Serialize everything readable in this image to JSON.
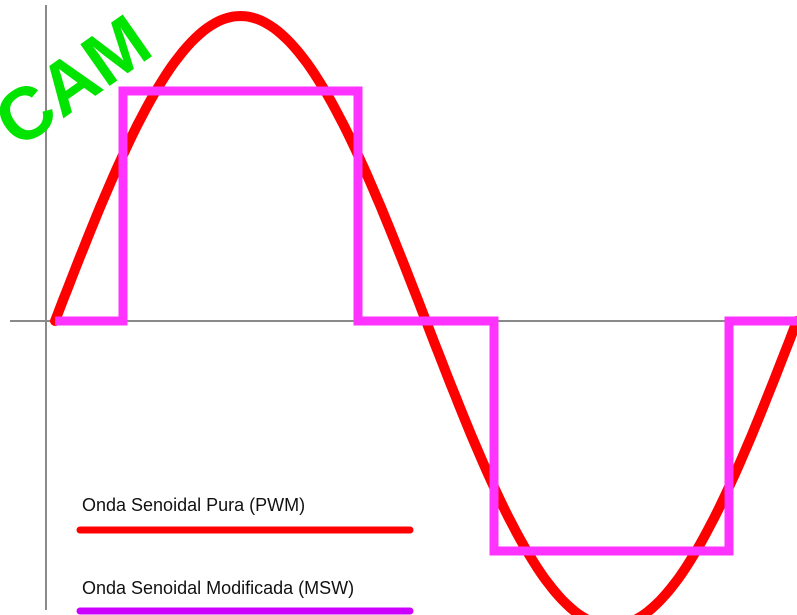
{
  "watermark": {
    "text": "CAM",
    "color": "#00e400"
  },
  "legend": {
    "items": [
      {
        "label": "Onda Senoidal Pura (PWM)",
        "color": "#ff0000"
      },
      {
        "label": "Onda Senoidal Modificada (MSW)",
        "color": "#cc00ff"
      }
    ]
  },
  "chart_data": {
    "type": "line",
    "title": "",
    "xlabel": "",
    "ylabel": "",
    "grid": false,
    "legend_position": "bottom-left",
    "xlim": [
      0,
      360
    ],
    "ylim": [
      -1.25,
      1.25
    ],
    "series": [
      {
        "name": "Onda Senoidal Pura (PWM)",
        "color": "#ff0000",
        "x": [
          0,
          15,
          30,
          45,
          60,
          75,
          90,
          105,
          120,
          135,
          150,
          165,
          180,
          195,
          210,
          225,
          240,
          255,
          270,
          285,
          300,
          315,
          330,
          345,
          360
        ],
        "y": [
          0,
          0.259,
          0.5,
          0.707,
          0.866,
          0.966,
          1,
          0.966,
          0.866,
          0.707,
          0.5,
          0.259,
          0,
          -0.259,
          -0.5,
          -0.707,
          -0.866,
          -0.966,
          -1,
          -0.966,
          -0.866,
          -0.707,
          -0.5,
          -0.259,
          0
        ]
      },
      {
        "name": "Onda Senoidal Modificada (MSW)",
        "color": "#ff33ff",
        "x": [
          0,
          33,
          33,
          147,
          147,
          213,
          213,
          327,
          327,
          360
        ],
        "y": [
          0,
          0,
          1,
          1,
          0,
          0,
          -1,
          -1,
          0,
          0
        ]
      }
    ]
  }
}
